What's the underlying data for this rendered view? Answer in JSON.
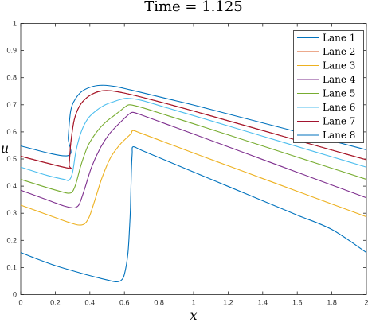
{
  "chart_data": {
    "type": "line",
    "title": "Time = 1.125",
    "xlabel": "x",
    "ylabel": "u",
    "xlim": [
      0,
      2
    ],
    "ylim": [
      0,
      1
    ],
    "xticks": [
      "0",
      "0.2",
      "0.4",
      "0.6",
      "0.8",
      "1",
      "1.2",
      "1.4",
      "1.6",
      "1.8",
      "2"
    ],
    "yticks": [
      "0",
      "0.1",
      "0.2",
      "0.3",
      "0.4",
      "0.5",
      "0.6",
      "0.7",
      "0.8",
      "0.9",
      "1"
    ],
    "grid": false,
    "legend_position": "top-right",
    "series": [
      {
        "name": "Lane 1",
        "color": "#0072BD",
        "x": [
          0,
          0.27,
          0.275,
          0.29,
          0.32,
          0.36,
          0.42,
          0.48,
          0.55,
          0.62,
          0.7,
          0.85,
          1.0,
          1.2,
          1.4,
          1.6,
          1.8,
          2.0
        ],
        "y": [
          0.548,
          0.512,
          0.58,
          0.68,
          0.725,
          0.752,
          0.768,
          0.772,
          0.767,
          0.757,
          0.745,
          0.722,
          0.699,
          0.666,
          0.633,
          0.6,
          0.567,
          0.534
        ]
      },
      {
        "name": "Lane 2",
        "color": "#D95319",
        "x": [
          0,
          0.27,
          0.28,
          0.29,
          0.31,
          0.34,
          0.38,
          0.43,
          0.48,
          0.53,
          0.6,
          0.7,
          0.85,
          1.0,
          1.2,
          1.4,
          1.6,
          1.8,
          2.0
        ],
        "y": [
          0.51,
          0.467,
          0.48,
          0.56,
          0.645,
          0.695,
          0.725,
          0.744,
          0.752,
          0.751,
          0.743,
          0.728,
          0.703,
          0.677,
          0.641,
          0.605,
          0.569,
          0.533,
          0.497
        ]
      },
      {
        "name": "Lane 3",
        "color": "#EDB120",
        "x": [
          0,
          0.1,
          0.2,
          0.28,
          0.33,
          0.36,
          0.38,
          0.4,
          0.43,
          0.47,
          0.52,
          0.57,
          0.6,
          0.625,
          0.64,
          0.65,
          0.7,
          0.85,
          1.0,
          1.2,
          1.4,
          1.6,
          1.8,
          2.0
        ],
        "y": [
          0.33,
          0.307,
          0.284,
          0.266,
          0.257,
          0.258,
          0.268,
          0.292,
          0.35,
          0.43,
          0.505,
          0.55,
          0.57,
          0.585,
          0.595,
          0.605,
          0.594,
          0.558,
          0.522,
          0.475,
          0.428,
          0.381,
          0.334,
          0.287
        ]
      },
      {
        "name": "Lane 4",
        "color": "#7E2F8E",
        "x": [
          0,
          0.15,
          0.25,
          0.3,
          0.32,
          0.34,
          0.37,
          0.41,
          0.46,
          0.51,
          0.56,
          0.6,
          0.63,
          0.65,
          0.7,
          0.85,
          1.0,
          1.2,
          1.4,
          1.6,
          1.8,
          2.0
        ],
        "y": [
          0.385,
          0.35,
          0.327,
          0.32,
          0.322,
          0.335,
          0.39,
          0.47,
          0.54,
          0.59,
          0.625,
          0.65,
          0.667,
          0.672,
          0.662,
          0.627,
          0.592,
          0.545,
          0.498,
          0.451,
          0.404,
          0.357
        ]
      },
      {
        "name": "Lane 5",
        "color": "#77AC30",
        "x": [
          0,
          0.15,
          0.25,
          0.28,
          0.3,
          0.32,
          0.35,
          0.39,
          0.44,
          0.49,
          0.54,
          0.58,
          0.6,
          0.63,
          0.7,
          0.85,
          1.0,
          1.2,
          1.4,
          1.6,
          1.8,
          2.0
        ],
        "y": [
          0.425,
          0.395,
          0.377,
          0.374,
          0.38,
          0.41,
          0.48,
          0.55,
          0.6,
          0.635,
          0.66,
          0.68,
          0.69,
          0.7,
          0.69,
          0.66,
          0.63,
          0.589,
          0.548,
          0.507,
          0.466,
          0.425
        ]
      },
      {
        "name": "Lane 6",
        "color": "#4DBEEE",
        "x": [
          0,
          0.15,
          0.25,
          0.28,
          0.3,
          0.32,
          0.35,
          0.39,
          0.44,
          0.49,
          0.54,
          0.58,
          0.62,
          0.7,
          0.85,
          1.0,
          1.2,
          1.4,
          1.6,
          1.8,
          2.0
        ],
        "y": [
          0.47,
          0.44,
          0.425,
          0.422,
          0.45,
          0.53,
          0.6,
          0.65,
          0.68,
          0.7,
          0.712,
          0.72,
          0.724,
          0.716,
          0.688,
          0.66,
          0.622,
          0.584,
          0.546,
          0.508,
          0.47
        ]
      },
      {
        "name": "Lane 7",
        "color": "#A2142F",
        "x": [
          0,
          0.27,
          0.28,
          0.29,
          0.31,
          0.34,
          0.38,
          0.43,
          0.48,
          0.53,
          0.6,
          0.7,
          0.85,
          1.0,
          1.2,
          1.4,
          1.6,
          1.8,
          2.0
        ],
        "y": [
          0.51,
          0.467,
          0.48,
          0.56,
          0.645,
          0.695,
          0.725,
          0.744,
          0.752,
          0.751,
          0.743,
          0.728,
          0.703,
          0.677,
          0.641,
          0.605,
          0.569,
          0.533,
          0.497
        ]
      },
      {
        "name": "Lane 8",
        "color": "#0072BD",
        "x": [
          0,
          0.1,
          0.2,
          0.3,
          0.4,
          0.5,
          0.55,
          0.58,
          0.6,
          0.62,
          0.63,
          0.635,
          0.64,
          0.645,
          0.65,
          0.7,
          0.85,
          1.0,
          1.2,
          1.4,
          1.6,
          1.8,
          2.0
        ],
        "y": [
          0.155,
          0.13,
          0.107,
          0.088,
          0.07,
          0.054,
          0.047,
          0.052,
          0.075,
          0.15,
          0.25,
          0.32,
          0.45,
          0.52,
          0.545,
          0.532,
          0.492,
          0.452,
          0.399,
          0.346,
          0.293,
          0.24,
          0.155
        ]
      }
    ]
  }
}
